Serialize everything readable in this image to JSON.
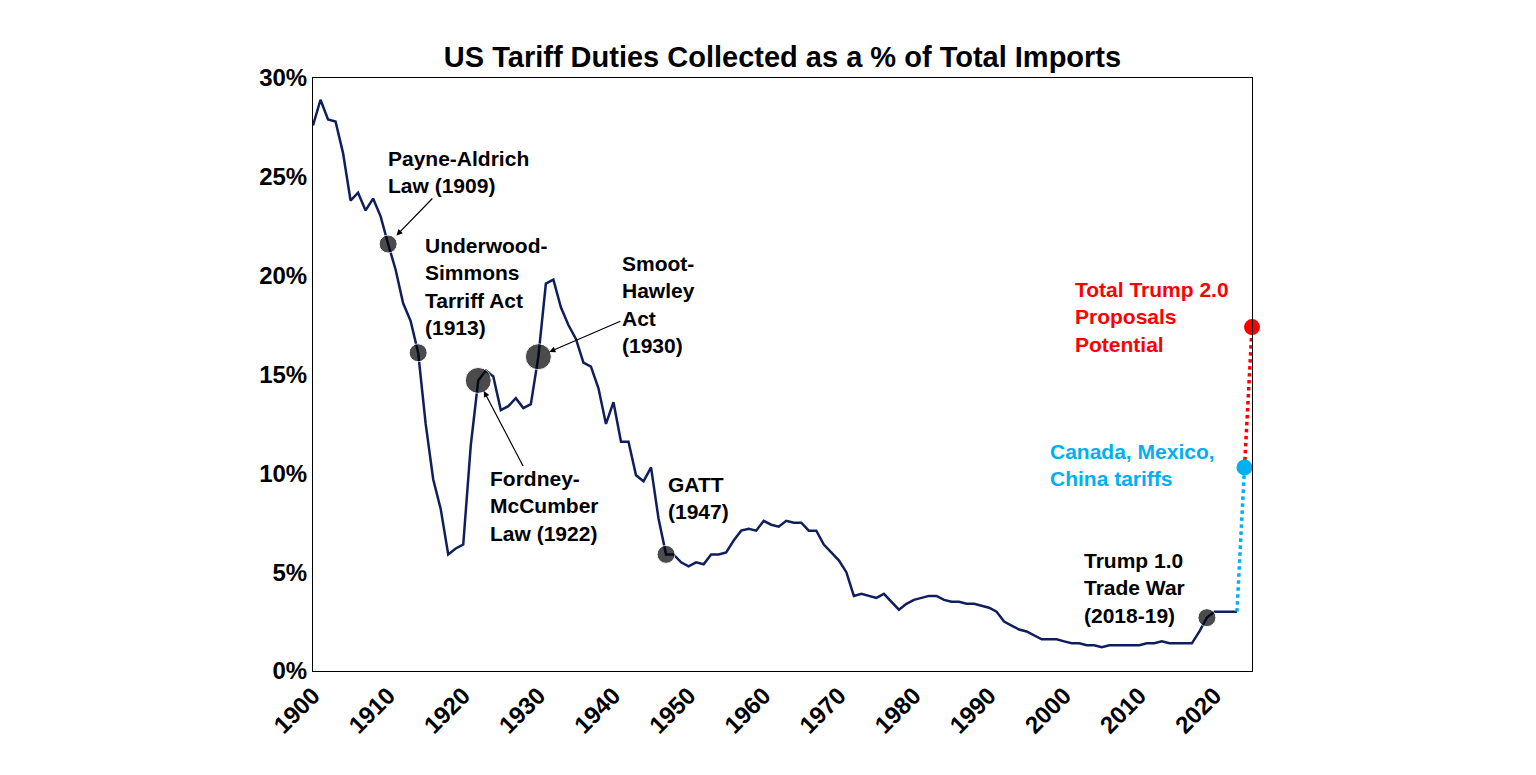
{
  "chart_data": {
    "type": "line",
    "title": "US Tariff Duties Collected as a % of Total Imports",
    "x": [
      1900,
      1901,
      1902,
      1903,
      1904,
      1905,
      1906,
      1907,
      1908,
      1909,
      1910,
      1911,
      1912,
      1913,
      1914,
      1915,
      1916,
      1917,
      1918,
      1919,
      1920,
      1921,
      1922,
      1923,
      1924,
      1925,
      1926,
      1927,
      1928,
      1929,
      1930,
      1931,
      1932,
      1933,
      1934,
      1935,
      1936,
      1937,
      1938,
      1939,
      1940,
      1941,
      1942,
      1943,
      1944,
      1945,
      1946,
      1947,
      1948,
      1949,
      1950,
      1951,
      1952,
      1953,
      1954,
      1955,
      1956,
      1957,
      1958,
      1959,
      1960,
      1961,
      1962,
      1963,
      1964,
      1965,
      1966,
      1967,
      1968,
      1969,
      1970,
      1971,
      1972,
      1973,
      1974,
      1975,
      1976,
      1977,
      1978,
      1979,
      1980,
      1981,
      1982,
      1983,
      1984,
      1985,
      1986,
      1987,
      1988,
      1989,
      1990,
      1991,
      1992,
      1993,
      1994,
      1995,
      1996,
      1997,
      1998,
      1999,
      2000,
      2001,
      2002,
      2003,
      2004,
      2005,
      2006,
      2007,
      2008,
      2009,
      2010,
      2011,
      2012,
      2013,
      2014,
      2015,
      2016,
      2017,
      2018,
      2019,
      2020,
      2021,
      2022,
      2023
    ],
    "series": [
      {
        "color": "#0f1f5c",
        "values": [
          27.6,
          28.9,
          27.9,
          27.8,
          26.2,
          23.8,
          24.2,
          23.3,
          23.9,
          23.0,
          21.6,
          20.3,
          18.6,
          17.7,
          16.1,
          12.5,
          9.7,
          8.2,
          5.9,
          6.2,
          6.4,
          11.4,
          14.7,
          15.2,
          14.9,
          13.2,
          13.4,
          13.8,
          13.3,
          13.5,
          15.9,
          19.6,
          19.8,
          18.4,
          17.5,
          16.8,
          15.6,
          15.4,
          14.3,
          12.5,
          13.6,
          11.6,
          11.6,
          9.9,
          9.6,
          10.3,
          7.7,
          5.9,
          5.9,
          5.5,
          5.3,
          5.5,
          5.4,
          5.9,
          5.9,
          6.0,
          6.6,
          7.1,
          7.2,
          7.1,
          7.6,
          7.4,
          7.3,
          7.6,
          7.5,
          7.5,
          7.1,
          7.1,
          6.4,
          6.0,
          5.6,
          5.0,
          3.8,
          3.9,
          3.8,
          3.7,
          3.9,
          3.5,
          3.1,
          3.4,
          3.6,
          3.7,
          3.8,
          3.8,
          3.6,
          3.5,
          3.5,
          3.4,
          3.4,
          3.3,
          3.2,
          3.0,
          2.5,
          2.3,
          2.1,
          2.0,
          1.8,
          1.6,
          1.6,
          1.6,
          1.5,
          1.4,
          1.4,
          1.3,
          1.3,
          1.2,
          1.3,
          1.3,
          1.3,
          1.3,
          1.3,
          1.4,
          1.4,
          1.5,
          1.4,
          1.4,
          1.4,
          1.4,
          2.0,
          2.7,
          3.0,
          3.0,
          3.0,
          3.0
        ]
      }
    ],
    "events": [
      {
        "label": "Payne-Aldrich\nLaw (1909)",
        "x": 1910,
        "y": 21.6
      },
      {
        "label": "Underwood-\nSimmons\nTarriff Act\n(1913)",
        "x": 1914,
        "y": 16.1
      },
      {
        "label": "Fordney-\nMcCumber\nLaw (1922)",
        "x": 1922,
        "y": 14.7
      },
      {
        "label": "Smoot-\nHawley\nAct\n(1930)",
        "x": 1930,
        "y": 15.9
      },
      {
        "label": "GATT\n(1947)",
        "x": 1947,
        "y": 5.9
      },
      {
        "label": "Trump 1.0\nTrade War\n(2018-19)",
        "x": 2019,
        "y": 2.7
      }
    ],
    "projections": [
      {
        "label": "Canada, Mexico,\nChina tariffs",
        "x": 2024,
        "y": 10.3,
        "color": "#00b0f0",
        "line_style": "dotted"
      },
      {
        "label": "Total Trump 2.0\nProposals\nPotential",
        "x": 2025,
        "y": 17.4,
        "color": "#ff0000",
        "line_style": "dotted"
      }
    ],
    "xlim": [
      1900,
      2025
    ],
    "xticks": [
      1900,
      1910,
      1920,
      1930,
      1940,
      1950,
      1960,
      1970,
      1980,
      1990,
      2000,
      2010,
      2020
    ],
    "ylim": [
      0,
      30
    ],
    "yticks": [
      {
        "value": 0,
        "label": "0%"
      },
      {
        "value": 5,
        "label": "5%"
      },
      {
        "value": 10,
        "label": "10%"
      },
      {
        "value": 15,
        "label": "15%"
      },
      {
        "value": 20,
        "label": "20%"
      },
      {
        "value": 25,
        "label": "25%"
      },
      {
        "value": 30,
        "label": "30%"
      }
    ],
    "grid": false
  }
}
